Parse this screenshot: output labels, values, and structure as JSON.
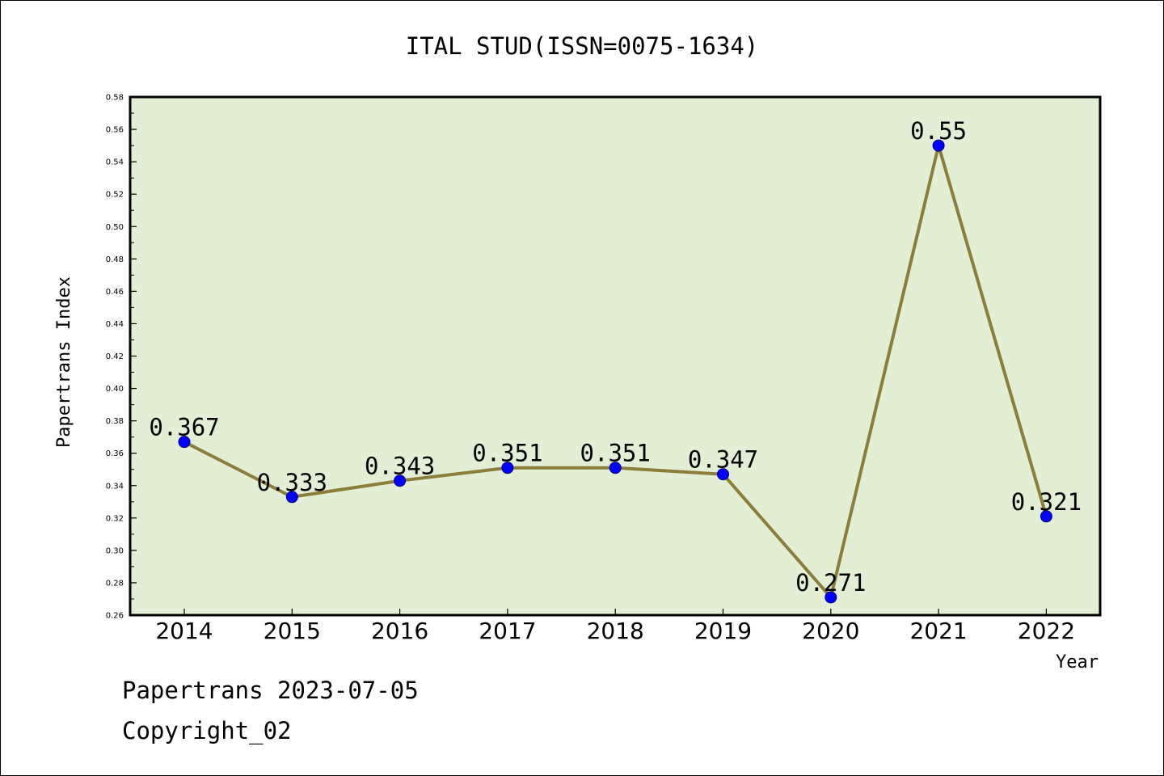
{
  "chart_data": {
    "type": "line",
    "title": "ITAL STUD(ISSN=0075-1634)",
    "xlabel": "Year",
    "ylabel": "Papertrans Index",
    "categories": [
      "2014",
      "2015",
      "2016",
      "2017",
      "2018",
      "2019",
      "2020",
      "2021",
      "2022"
    ],
    "values": [
      0.367,
      0.333,
      0.343,
      0.351,
      0.351,
      0.347,
      0.271,
      0.55,
      0.321
    ],
    "data_labels": [
      "0.367",
      "0.333",
      "0.343",
      "0.351",
      "0.351",
      "0.347",
      "0.271",
      "0.55",
      "0.321"
    ],
    "ylim": [
      0.26,
      0.58
    ],
    "yticks": [
      "0.26",
      "0.28",
      "0.30",
      "0.32",
      "0.34",
      "0.36",
      "0.38",
      "0.40",
      "0.42",
      "0.44",
      "0.46",
      "0.48",
      "0.50",
      "0.52",
      "0.54",
      "0.56",
      "0.58"
    ],
    "grid": false,
    "colors": {
      "plot_background": "#e2efd4",
      "line": "#8c7d3a",
      "marker": "#0000ff"
    }
  },
  "footer": {
    "generated": "Papertrans 2023-07-05",
    "copyright": "Copyright_02"
  }
}
